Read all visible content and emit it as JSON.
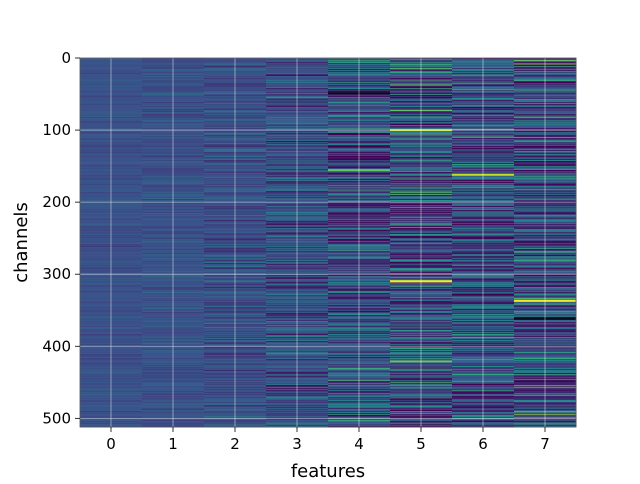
{
  "chart_data": {
    "type": "heatmap",
    "title": "",
    "xlabel": "features",
    "ylabel": "channels",
    "x_categories": [
      "0",
      "1",
      "2",
      "3",
      "4",
      "5",
      "6",
      "7"
    ],
    "y_range": [
      0,
      512
    ],
    "y_ticks": [
      "0",
      "100",
      "200",
      "300",
      "400",
      "500"
    ],
    "n_channels": 512,
    "grid": true,
    "colormap": [
      "#440154",
      "#3b528b",
      "#21918c",
      "#5ec962",
      "#fde725"
    ],
    "column_variation": [
      0.04,
      0.06,
      0.1,
      0.16,
      0.24,
      0.3,
      0.26,
      0.3
    ],
    "highlights": [
      {
        "feature": 4,
        "channel": 49,
        "color": "#0c0a1e"
      },
      {
        "feature": 4,
        "channel": 156,
        "color": "#5ec962"
      },
      {
        "feature": 5,
        "channel": 100,
        "color": "#c5e021"
      },
      {
        "feature": 5,
        "channel": 310,
        "color": "#fde725"
      },
      {
        "feature": 5,
        "channel": 421,
        "color": "#5ec962"
      },
      {
        "feature": 6,
        "channel": 162,
        "color": "#c5e021"
      },
      {
        "feature": 7,
        "channel": 337,
        "color": "#fde725"
      },
      {
        "feature": 7,
        "channel": 362,
        "color": "#0c0a1e"
      }
    ]
  }
}
